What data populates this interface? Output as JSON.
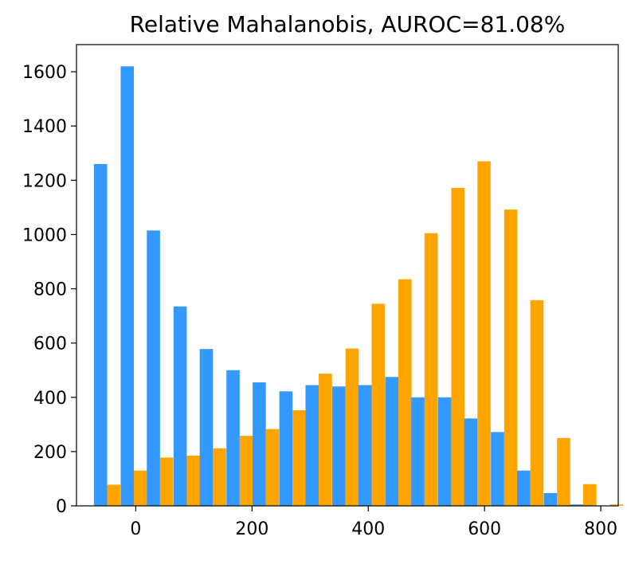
{
  "chart_data": {
    "type": "bar",
    "title": "Relative Mahalanobis, AUROC=81.08%",
    "xlabel": "",
    "ylabel": "",
    "xlim": [
      -102,
      830
    ],
    "ylim": [
      0,
      1700
    ],
    "xticks": [
      0,
      200,
      400,
      600,
      800
    ],
    "yticks": [
      0,
      200,
      400,
      600,
      800,
      1000,
      1200,
      1400,
      1600
    ],
    "grid": false,
    "legend": "none",
    "bin_width": 45.5,
    "bin_starts": [
      -72,
      -26,
      19,
      65,
      110,
      156,
      201,
      247,
      292,
      338,
      383,
      429,
      474,
      520,
      565,
      611,
      656,
      702,
      747,
      793
    ],
    "series": [
      {
        "color": "#3399ff",
        "values": [
          1260,
          1620,
          1015,
          735,
          578,
          500,
          455,
          422,
          445,
          440,
          445,
          475,
          400,
          400,
          322,
          272,
          130,
          47,
          5,
          0
        ]
      },
      {
        "color": "#ffa500",
        "values": [
          78,
          130,
          178,
          185,
          212,
          258,
          283,
          352,
          487,
          580,
          745,
          835,
          1005,
          1172,
          1270,
          1092,
          758,
          250,
          80,
          5
        ]
      }
    ]
  }
}
